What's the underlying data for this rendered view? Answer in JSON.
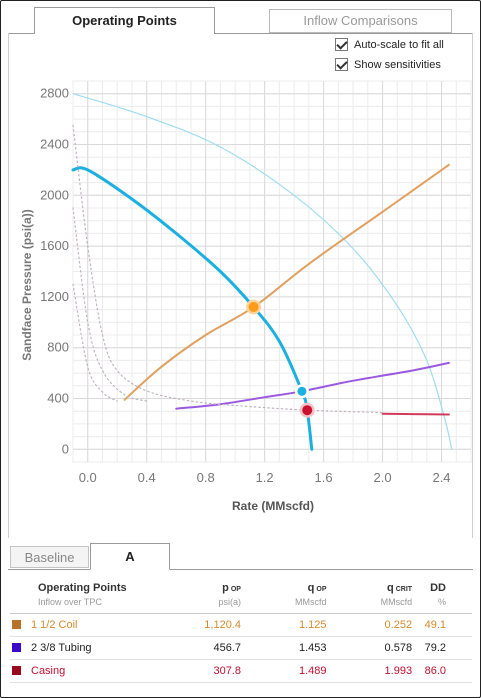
{
  "tabs": {
    "operating_points": "Operating Points",
    "inflow_comparisons": "Inflow Comparisons"
  },
  "options": {
    "autoscale_label": "Auto-scale to fit all",
    "autoscale_checked": true,
    "sensitivities_label": "Show sensitivities",
    "sensitivities_checked": true
  },
  "chart_data": {
    "type": "line",
    "xlabel": "Rate (MMscfd)",
    "ylabel": "Sandface Pressure (psi(a))",
    "xlim": [
      -0.1,
      2.6
    ],
    "ylim": [
      -100,
      2900
    ],
    "x_ticks": [
      "0.0",
      "0.4",
      "0.8",
      "1.2",
      "1.6",
      "2.0",
      "2.4"
    ],
    "x_tick_values": [
      0.0,
      0.4,
      0.8,
      1.2,
      1.6,
      2.0,
      2.4
    ],
    "y_ticks": [
      "0",
      "400",
      "800",
      "1200",
      "1600",
      "2000",
      "2400",
      "2800"
    ],
    "y_tick_values": [
      0,
      400,
      800,
      1200,
      1600,
      2000,
      2400,
      2800
    ],
    "grid": true,
    "series": [
      {
        "color": "#1ab0e0",
        "style": "bold",
        "points": [
          [
            -0.1,
            2200
          ],
          [
            0.0,
            2200
          ],
          [
            0.3,
            1970
          ],
          [
            0.6,
            1700
          ],
          [
            0.9,
            1400
          ],
          [
            1.125,
            1120
          ],
          [
            1.3,
            850
          ],
          [
            1.453,
            457
          ],
          [
            1.489,
            308
          ],
          [
            1.52,
            0
          ]
        ]
      },
      {
        "color": "#9fdcef",
        "style": "thin",
        "points": [
          [
            -0.1,
            2800
          ],
          [
            0.4,
            2620
          ],
          [
            0.9,
            2380
          ],
          [
            1.4,
            2000
          ],
          [
            1.8,
            1580
          ],
          [
            2.1,
            1130
          ],
          [
            2.3,
            700
          ],
          [
            2.42,
            250
          ],
          [
            2.47,
            0
          ]
        ]
      },
      {
        "color": "#e0a060",
        "style": "normal",
        "points": [
          [
            0.25,
            390
          ],
          [
            0.5,
            650
          ],
          [
            0.8,
            900
          ],
          [
            1.125,
            1120
          ],
          [
            1.5,
            1460
          ],
          [
            2.0,
            1870
          ],
          [
            2.45,
            2240
          ]
        ]
      },
      {
        "color": "#9b59e0",
        "style": "normal",
        "points": [
          [
            0.6,
            320
          ],
          [
            0.9,
            355
          ],
          [
            1.2,
            410
          ],
          [
            1.453,
            457
          ],
          [
            1.8,
            540
          ],
          [
            2.2,
            620
          ],
          [
            2.45,
            680
          ]
        ]
      },
      {
        "color": "#d23a5a",
        "style": "normal",
        "points": [
          [
            2.0,
            280
          ],
          [
            2.2,
            277
          ],
          [
            2.45,
            274
          ]
        ]
      },
      {
        "color": "#bfb4c0",
        "style": "dotted",
        "points": [
          [
            -0.1,
            2550
          ],
          [
            0.0,
            1600
          ],
          [
            0.1,
            900
          ],
          [
            0.2,
            620
          ],
          [
            0.4,
            460
          ],
          [
            0.7,
            380
          ],
          [
            1.0,
            345
          ],
          [
            1.489,
            308
          ],
          [
            2.0,
            290
          ]
        ]
      },
      {
        "color": "#bfb4c0",
        "style": "dotted",
        "points": [
          [
            -0.1,
            1900
          ],
          [
            0.0,
            1000
          ],
          [
            0.1,
            620
          ],
          [
            0.25,
            430
          ],
          [
            0.4,
            380
          ]
        ]
      },
      {
        "color": "#bfb4c0",
        "style": "dotted",
        "points": [
          [
            -0.1,
            1300
          ],
          [
            0.0,
            650
          ],
          [
            0.1,
            450
          ],
          [
            0.2,
            380
          ]
        ]
      }
    ],
    "markers": [
      {
        "name": "1 1/2 Coil",
        "x": 1.125,
        "y": 1120.4,
        "fill": "#ff9a1a",
        "ring": "#ffd29a",
        "r": 5
      },
      {
        "name": "2 3/8 Tubing",
        "x": 1.453,
        "y": 456.7,
        "fill": "#1ab0e0",
        "ring": "#ffffff",
        "r": 4.5
      },
      {
        "name": "Casing",
        "x": 1.489,
        "y": 307.8,
        "fill": "#cc1030",
        "ring": "#f5c2c8",
        "r": 5
      }
    ]
  },
  "subtabs": {
    "baseline": "Baseline",
    "a": "A"
  },
  "table": {
    "title": "Operating Points",
    "subtitle": "Inflow over TPC",
    "cols": [
      {
        "sym": "p",
        "sub": "OP",
        "unit": "psi(a)"
      },
      {
        "sym": "q",
        "sub": "OP",
        "unit": "MMscfd"
      },
      {
        "sym": "q",
        "sub": "CRIT",
        "unit": "MMscfd"
      },
      {
        "sym": "DD",
        "sub": "",
        "unit": "%"
      }
    ],
    "rows": [
      {
        "name": "1 1/2 Coil",
        "color": "#b8732a",
        "text_color": "#d68a2c",
        "p_op": "1,120.4",
        "q_op": "1.125",
        "q_crit": "0.252",
        "dd": "49.1"
      },
      {
        "name": "2 3/8 Tubing",
        "color": "#3a0ac8",
        "text_color": "#222222",
        "p_op": "456.7",
        "q_op": "1.453",
        "q_crit": "0.578",
        "dd": "79.2"
      },
      {
        "name": "Casing",
        "color": "#9a0a1e",
        "text_color": "#c01030",
        "p_op": "307.8",
        "q_op": "1.489",
        "q_crit": "1.993",
        "dd": "86.0"
      }
    ]
  }
}
